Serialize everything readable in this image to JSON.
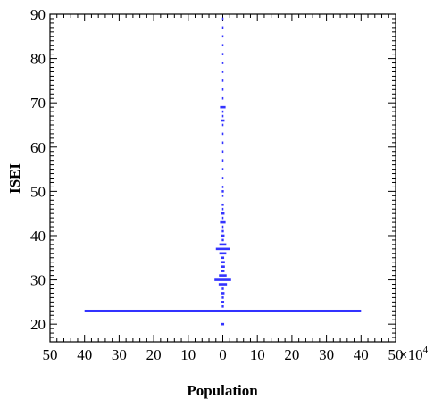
{
  "chart_data": {
    "type": "bar",
    "orientation": "horizontal-symmetric",
    "xlabel": "Population",
    "ylabel": "ISEI",
    "x_multiplier_label": "×10",
    "x_multiplier_exponent": "4",
    "xlim": [
      -50,
      50
    ],
    "ylim": [
      16,
      90
    ],
    "x_tick_values": [
      -50,
      -40,
      -30,
      -20,
      -10,
      0,
      10,
      20,
      30,
      40,
      50
    ],
    "x_tick_labels": [
      "50",
      "40",
      "30",
      "20",
      "10",
      "0",
      "10",
      "20",
      "30",
      "40",
      "50"
    ],
    "y_tick_values": [
      20,
      30,
      40,
      50,
      60,
      70,
      80,
      90
    ],
    "y_tick_labels": [
      "20",
      "30",
      "40",
      "50",
      "60",
      "70",
      "80",
      "90"
    ],
    "bar_color": "#3333ff",
    "series": [
      {
        "isei": [
          20,
          23,
          24,
          25,
          26,
          27,
          28,
          29,
          30,
          31,
          32,
          33,
          34,
          35,
          36,
          37,
          38,
          39,
          40,
          41,
          42,
          43,
          44,
          45,
          46,
          47,
          49,
          50,
          51,
          53,
          55,
          57,
          59,
          61,
          63,
          65,
          66,
          67,
          68,
          69,
          71,
          73,
          75,
          77,
          79,
          81,
          83,
          85,
          87,
          89
        ],
        "population_half_width": [
          0.4,
          40,
          0.3,
          0.4,
          0.3,
          0.5,
          0.3,
          1.2,
          2.4,
          1.1,
          0.5,
          0.6,
          0.6,
          0.4,
          1,
          2,
          1,
          0.3,
          0.5,
          0.3,
          0.2,
          0.8,
          0.2,
          0.5,
          0.2,
          0.3,
          0.2,
          0.3,
          0.2,
          0.2,
          0.2,
          0.2,
          0.2,
          0.2,
          0.2,
          0.2,
          0.5,
          0.2,
          0.2,
          0.8,
          0.2,
          0.2,
          0.2,
          0.2,
          0.2,
          0.2,
          0.2,
          0.2,
          0.2,
          0.2
        ]
      }
    ]
  }
}
